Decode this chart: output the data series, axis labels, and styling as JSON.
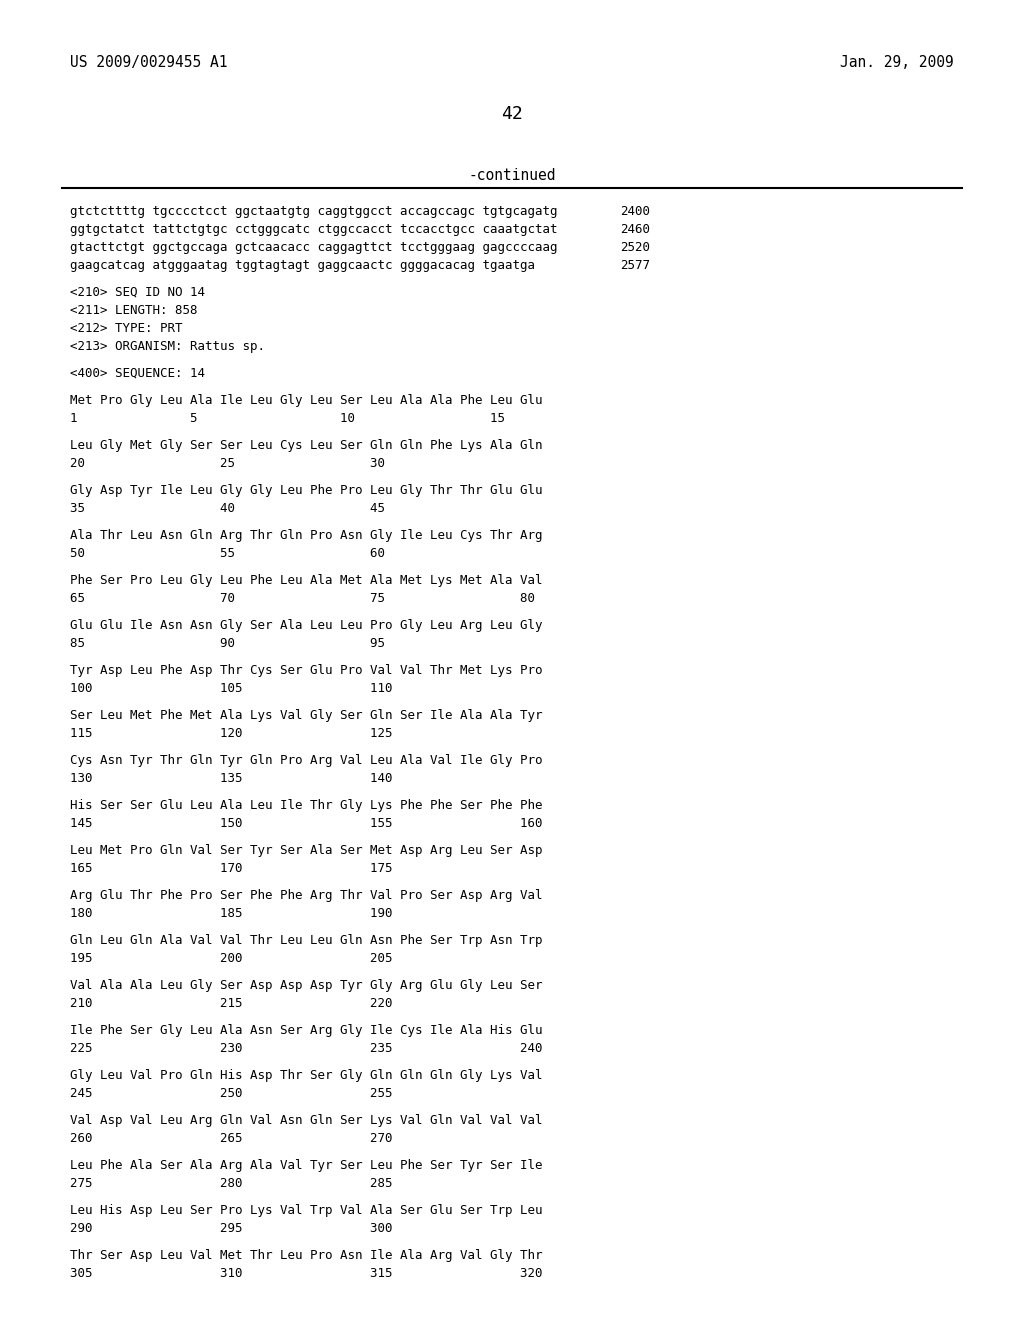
{
  "background_color": "#ffffff",
  "header_left": "US 2009/0029455 A1",
  "header_right": "Jan. 29, 2009",
  "page_number": "42",
  "continued_label": "-continued",
  "body_lines": [
    {
      "text": "gtctcttttg tgcccctcct ggctaatgtg caggtggcct accagccagc tgtgcagatg",
      "num": "2400",
      "type": "seq"
    },
    {
      "text": "ggtgctatct tattctgtgc cctgggcatc ctggccacct tccacctgcc caaatgctat",
      "num": "2460",
      "type": "seq"
    },
    {
      "text": "gtacttctgt ggctgccaga gctcaacacc caggagttct tcctgggaag gagccccaag",
      "num": "2520",
      "type": "seq"
    },
    {
      "text": "gaagcatcag atgggaatag tggtagtagt gaggcaactc ggggacacag tgaatga",
      "num": "2577",
      "type": "seq"
    },
    {
      "text": "",
      "num": "",
      "type": "blank"
    },
    {
      "text": "<210> SEQ ID NO 14",
      "num": "",
      "type": "meta"
    },
    {
      "text": "<211> LENGTH: 858",
      "num": "",
      "type": "meta"
    },
    {
      "text": "<212> TYPE: PRT",
      "num": "",
      "type": "meta"
    },
    {
      "text": "<213> ORGANISM: Rattus sp.",
      "num": "",
      "type": "meta"
    },
    {
      "text": "",
      "num": "",
      "type": "blank"
    },
    {
      "text": "<400> SEQUENCE: 14",
      "num": "",
      "type": "meta"
    },
    {
      "text": "",
      "num": "",
      "type": "blank"
    },
    {
      "text": "Met Pro Gly Leu Ala Ile Leu Gly Leu Ser Leu Ala Ala Phe Leu Glu",
      "num": "",
      "type": "aa"
    },
    {
      "text": "1               5                   10                  15",
      "num": "",
      "type": "pos"
    },
    {
      "text": "",
      "num": "",
      "type": "blank"
    },
    {
      "text": "Leu Gly Met Gly Ser Ser Leu Cys Leu Ser Gln Gln Phe Lys Ala Gln",
      "num": "",
      "type": "aa"
    },
    {
      "text": "20                  25                  30",
      "num": "",
      "type": "pos"
    },
    {
      "text": "",
      "num": "",
      "type": "blank"
    },
    {
      "text": "Gly Asp Tyr Ile Leu Gly Gly Leu Phe Pro Leu Gly Thr Thr Glu Glu",
      "num": "",
      "type": "aa"
    },
    {
      "text": "35                  40                  45",
      "num": "",
      "type": "pos"
    },
    {
      "text": "",
      "num": "",
      "type": "blank"
    },
    {
      "text": "Ala Thr Leu Asn Gln Arg Thr Gln Pro Asn Gly Ile Leu Cys Thr Arg",
      "num": "",
      "type": "aa"
    },
    {
      "text": "50                  55                  60",
      "num": "",
      "type": "pos"
    },
    {
      "text": "",
      "num": "",
      "type": "blank"
    },
    {
      "text": "Phe Ser Pro Leu Gly Leu Phe Leu Ala Met Ala Met Lys Met Ala Val",
      "num": "",
      "type": "aa"
    },
    {
      "text": "65                  70                  75                  80",
      "num": "",
      "type": "pos"
    },
    {
      "text": "",
      "num": "",
      "type": "blank"
    },
    {
      "text": "Glu Glu Ile Asn Asn Gly Ser Ala Leu Leu Pro Gly Leu Arg Leu Gly",
      "num": "",
      "type": "aa"
    },
    {
      "text": "85                  90                  95",
      "num": "",
      "type": "pos"
    },
    {
      "text": "",
      "num": "",
      "type": "blank"
    },
    {
      "text": "Tyr Asp Leu Phe Asp Thr Cys Ser Glu Pro Val Val Thr Met Lys Pro",
      "num": "",
      "type": "aa"
    },
    {
      "text": "100                 105                 110",
      "num": "",
      "type": "pos"
    },
    {
      "text": "",
      "num": "",
      "type": "blank"
    },
    {
      "text": "Ser Leu Met Phe Met Ala Lys Val Gly Ser Gln Ser Ile Ala Ala Tyr",
      "num": "",
      "type": "aa"
    },
    {
      "text": "115                 120                 125",
      "num": "",
      "type": "pos"
    },
    {
      "text": "",
      "num": "",
      "type": "blank"
    },
    {
      "text": "Cys Asn Tyr Thr Gln Tyr Gln Pro Arg Val Leu Ala Val Ile Gly Pro",
      "num": "",
      "type": "aa"
    },
    {
      "text": "130                 135                 140",
      "num": "",
      "type": "pos"
    },
    {
      "text": "",
      "num": "",
      "type": "blank"
    },
    {
      "text": "His Ser Ser Glu Leu Ala Leu Ile Thr Gly Lys Phe Phe Ser Phe Phe",
      "num": "",
      "type": "aa"
    },
    {
      "text": "145                 150                 155                 160",
      "num": "",
      "type": "pos"
    },
    {
      "text": "",
      "num": "",
      "type": "blank"
    },
    {
      "text": "Leu Met Pro Gln Val Ser Tyr Ser Ala Ser Met Asp Arg Leu Ser Asp",
      "num": "",
      "type": "aa"
    },
    {
      "text": "165                 170                 175",
      "num": "",
      "type": "pos"
    },
    {
      "text": "",
      "num": "",
      "type": "blank"
    },
    {
      "text": "Arg Glu Thr Phe Pro Ser Phe Phe Arg Thr Val Pro Ser Asp Arg Val",
      "num": "",
      "type": "aa"
    },
    {
      "text": "180                 185                 190",
      "num": "",
      "type": "pos"
    },
    {
      "text": "",
      "num": "",
      "type": "blank"
    },
    {
      "text": "Gln Leu Gln Ala Val Val Thr Leu Leu Gln Asn Phe Ser Trp Asn Trp",
      "num": "",
      "type": "aa"
    },
    {
      "text": "195                 200                 205",
      "num": "",
      "type": "pos"
    },
    {
      "text": "",
      "num": "",
      "type": "blank"
    },
    {
      "text": "Val Ala Ala Leu Gly Ser Asp Asp Asp Tyr Gly Arg Glu Gly Leu Ser",
      "num": "",
      "type": "aa"
    },
    {
      "text": "210                 215                 220",
      "num": "",
      "type": "pos"
    },
    {
      "text": "",
      "num": "",
      "type": "blank"
    },
    {
      "text": "Ile Phe Ser Gly Leu Ala Asn Ser Arg Gly Ile Cys Ile Ala His Glu",
      "num": "",
      "type": "aa"
    },
    {
      "text": "225                 230                 235                 240",
      "num": "",
      "type": "pos"
    },
    {
      "text": "",
      "num": "",
      "type": "blank"
    },
    {
      "text": "Gly Leu Val Pro Gln His Asp Thr Ser Gly Gln Gln Gln Gly Lys Val",
      "num": "",
      "type": "aa"
    },
    {
      "text": "245                 250                 255",
      "num": "",
      "type": "pos"
    },
    {
      "text": "",
      "num": "",
      "type": "blank"
    },
    {
      "text": "Val Asp Val Leu Arg Gln Val Asn Gln Ser Lys Val Gln Val Val Val",
      "num": "",
      "type": "aa"
    },
    {
      "text": "260                 265                 270",
      "num": "",
      "type": "pos"
    },
    {
      "text": "",
      "num": "",
      "type": "blank"
    },
    {
      "text": "Leu Phe Ala Ser Ala Arg Ala Val Tyr Ser Leu Phe Ser Tyr Ser Ile",
      "num": "",
      "type": "aa"
    },
    {
      "text": "275                 280                 285",
      "num": "",
      "type": "pos"
    },
    {
      "text": "",
      "num": "",
      "type": "blank"
    },
    {
      "text": "Leu His Asp Leu Ser Pro Lys Val Trp Val Ala Ser Glu Ser Trp Leu",
      "num": "",
      "type": "aa"
    },
    {
      "text": "290                 295                 300",
      "num": "",
      "type": "pos"
    },
    {
      "text": "",
      "num": "",
      "type": "blank"
    },
    {
      "text": "Thr Ser Asp Leu Val Met Thr Leu Pro Asn Ile Ala Arg Val Gly Thr",
      "num": "",
      "type": "aa"
    },
    {
      "text": "305                 310                 315                 320",
      "num": "",
      "type": "pos"
    }
  ]
}
